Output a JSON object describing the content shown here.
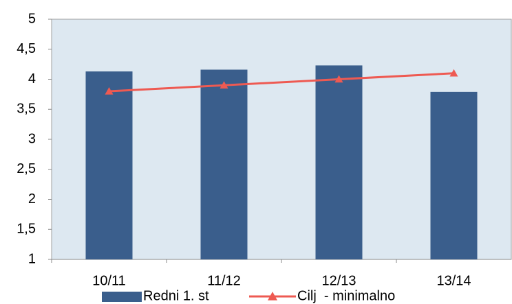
{
  "chart_data": {
    "type": "bar_line",
    "categories": [
      "10/11",
      "11/12",
      "12/13",
      "13/14"
    ],
    "series": [
      {
        "name": "Redni 1. st",
        "type": "bar",
        "color": "#3a5e8c",
        "values": [
          4.13,
          4.16,
          4.23,
          3.79
        ]
      },
      {
        "name": "Cilj  - minimalno",
        "type": "line",
        "color": "#ee5a52",
        "values": [
          3.8,
          3.9,
          4.0,
          4.1
        ]
      }
    ],
    "ylim": [
      1,
      5
    ],
    "yticks": [
      1,
      {
        "value": 1.5,
        "label": "1,5"
      },
      2,
      {
        "value": 2.5,
        "label": "2,5"
      },
      3,
      {
        "value": 3.5,
        "label": "3,5"
      },
      4,
      {
        "value": 4.5,
        "label": "4,5"
      },
      5
    ],
    "legend": "bottom"
  }
}
